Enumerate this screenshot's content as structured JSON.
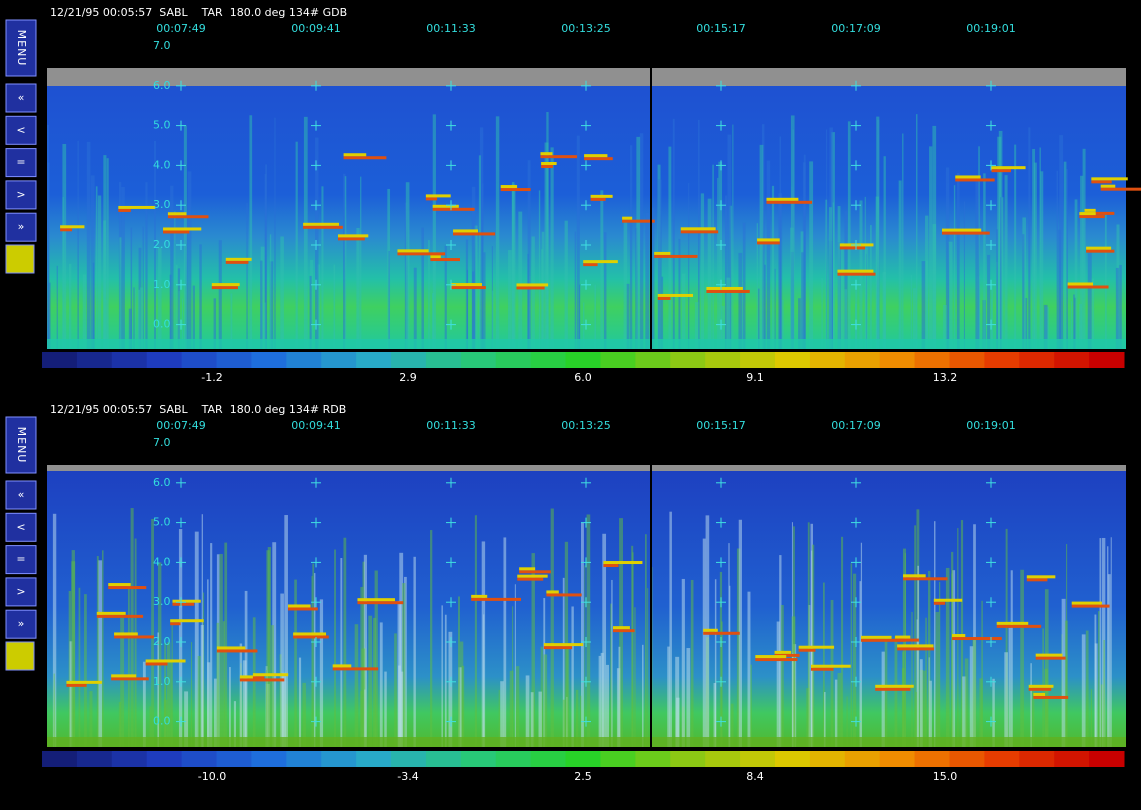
{
  "panels": [
    {
      "menu": {
        "label": "MENU",
        "buttons": [
          "«",
          "<",
          "=",
          ">",
          "»"
        ]
      },
      "header": "12/21/95 00:05:57  SABL    TAR  180.0 deg 134# GDB",
      "times": [
        "00:07:49",
        "00:09:41",
        "00:11:33",
        "00:13:25",
        "00:15:17",
        "00:17:09",
        "00:19:01"
      ],
      "altitudes": [
        "7.0",
        "6.0",
        "5.0",
        "4.0",
        "3.0",
        "2.0",
        "1.0",
        "0.0"
      ],
      "scale_labels": [
        "-1.2",
        "2.9",
        "6.0",
        "9.1",
        "13.2"
      ]
    },
    {
      "menu": {
        "label": "MENU",
        "buttons": [
          "«",
          "<",
          "=",
          ">",
          "»"
        ]
      },
      "header": "12/21/95 00:05:57  SABL    TAR  180.0 deg 134# RDB",
      "times": [
        "00:07:49",
        "00:09:41",
        "00:11:33",
        "00:13:25",
        "00:15:17",
        "00:17:09",
        "00:19:01"
      ],
      "altitudes": [
        "7.0",
        "6.0",
        "5.0",
        "4.0",
        "3.0",
        "2.0",
        "1.0",
        "0.0"
      ],
      "scale_labels": [
        "-10.0",
        "-3.4",
        "2.5",
        "8.4",
        "15.0"
      ]
    }
  ]
}
